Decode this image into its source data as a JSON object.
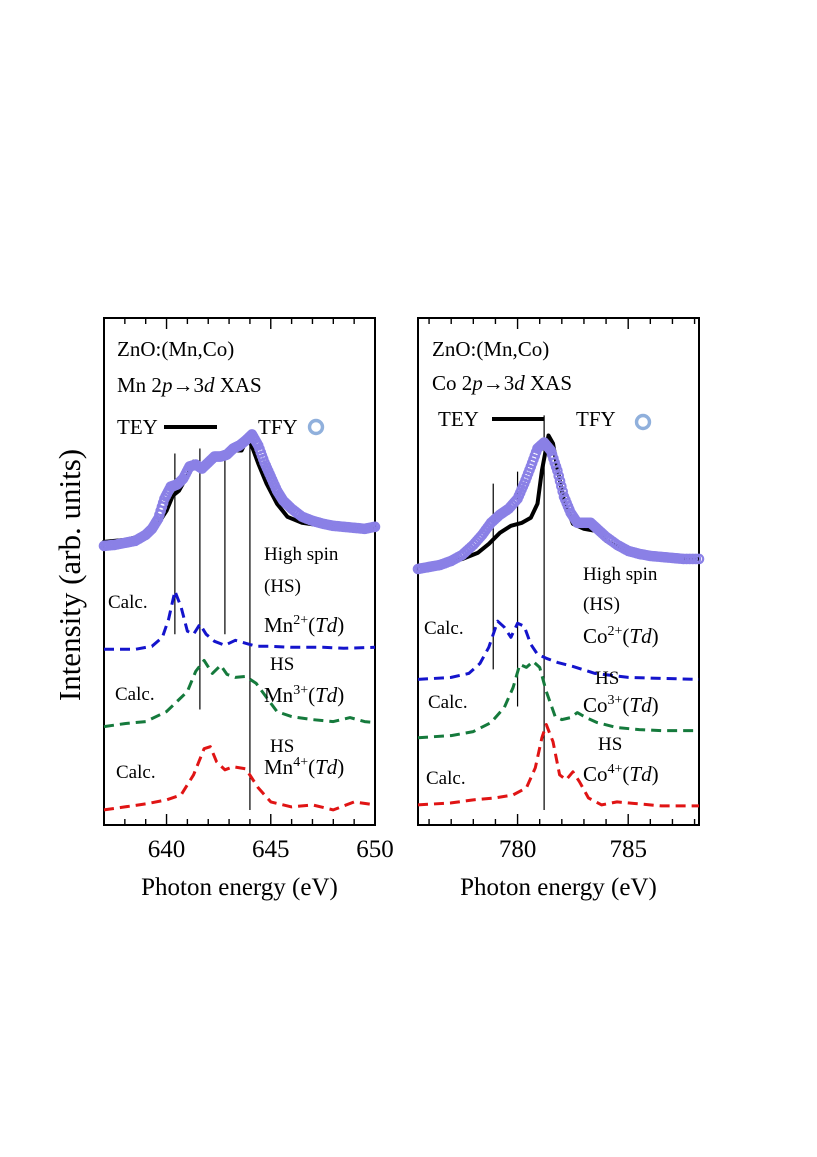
{
  "figure": {
    "ylabel": "Intensity (arb. units)"
  },
  "colors": {
    "tey": "#000000",
    "tfy": "#8a80e6",
    "tfy_legend": "#90b0dc",
    "mn2_co2": "#1414cc",
    "mn3_co3": "#157a3c",
    "mn4_co4": "#e01414"
  },
  "chart_data": [
    {
      "type": "line",
      "panel": "Mn",
      "title_line1": "ZnO:(Mn,Co)",
      "title_line2_html": "Mn 2<i>p</i>→3<i>d</i> XAS",
      "xlabel": "Photon energy (eV)",
      "ylabel": "Intensity (arb. units)",
      "xlim": [
        637,
        650
      ],
      "ylim": [
        -0.15,
        4.9
      ],
      "xticks": [
        "640",
        "645",
        "650"
      ],
      "xtick_values": [
        640,
        645,
        650
      ],
      "legend": {
        "tey": "TEY",
        "tfy": "TFY"
      },
      "vlines": [
        {
          "x": 640.4,
          "y0": 1.75,
          "y1": 3.55
        },
        {
          "x": 641.6,
          "y0": 1.0,
          "y1": 3.6
        },
        {
          "x": 642.8,
          "y0": 1.75,
          "y1": 3.55
        },
        {
          "x": 644.0,
          "y0": 0.0,
          "y1": 3.7
        }
      ],
      "series": [
        {
          "name": "TEY",
          "style": "solid",
          "x": [
            637.0,
            638.0,
            639.0,
            639.5,
            640.0,
            640.3,
            640.6,
            641.0,
            641.3,
            641.6,
            642.0,
            642.4,
            642.8,
            643.2,
            643.6,
            643.9,
            644.1,
            644.4,
            644.8,
            645.3,
            645.8,
            646.5,
            647.5,
            648.5,
            650.0
          ],
          "y": [
            2.67,
            2.69,
            2.74,
            2.82,
            2.98,
            3.13,
            3.18,
            3.33,
            3.47,
            3.4,
            3.45,
            3.53,
            3.51,
            3.58,
            3.58,
            3.71,
            3.62,
            3.45,
            3.25,
            3.05,
            2.92,
            2.86,
            2.83,
            2.81,
            2.8
          ]
        },
        {
          "name": "TFY",
          "style": "markers",
          "x": [
            637.0,
            637.5,
            638.0,
            638.5,
            639.0,
            639.3,
            639.6,
            639.9,
            640.2,
            640.5,
            640.8,
            641.1,
            641.4,
            641.7,
            642.0,
            642.3,
            642.6,
            642.9,
            643.2,
            643.5,
            643.8,
            644.1,
            644.4,
            644.7,
            645.0,
            645.3,
            645.6,
            646.0,
            646.5,
            647.0,
            647.5,
            648.0,
            648.5,
            649.0,
            649.5,
            650.0
          ],
          "y": [
            2.63,
            2.64,
            2.66,
            2.68,
            2.74,
            2.8,
            2.9,
            3.1,
            3.22,
            3.24,
            3.3,
            3.42,
            3.44,
            3.4,
            3.46,
            3.52,
            3.52,
            3.54,
            3.6,
            3.63,
            3.68,
            3.74,
            3.63,
            3.46,
            3.32,
            3.18,
            3.08,
            3.0,
            2.92,
            2.88,
            2.85,
            2.83,
            2.82,
            2.81,
            2.8,
            2.82
          ]
        },
        {
          "name": "Calc. HS Mn2+(Td)",
          "style": "dashed",
          "color_key": "mn2_co2",
          "x": [
            637.0,
            638.5,
            639.3,
            639.8,
            640.1,
            640.4,
            640.7,
            641.0,
            641.3,
            641.6,
            641.9,
            642.3,
            642.8,
            643.3,
            643.8,
            644.3,
            645.0,
            646.0,
            647.5,
            648.5,
            650.0
          ],
          "y": [
            1.6,
            1.6,
            1.63,
            1.72,
            1.9,
            2.18,
            2.02,
            1.78,
            1.75,
            1.85,
            1.75,
            1.68,
            1.64,
            1.69,
            1.66,
            1.63,
            1.63,
            1.62,
            1.62,
            1.61,
            1.62
          ]
        },
        {
          "name": "Calc. HS Mn3+(Td)",
          "style": "dashed",
          "color_key": "mn3_co3",
          "x": [
            637.0,
            638.0,
            639.0,
            640.0,
            640.5,
            641.0,
            641.4,
            641.8,
            642.2,
            642.6,
            642.9,
            643.3,
            643.8,
            644.3,
            644.8,
            645.3,
            646.0,
            647.0,
            648.0,
            648.8,
            649.5,
            650.0
          ],
          "y": [
            0.83,
            0.86,
            0.88,
            0.98,
            1.08,
            1.18,
            1.38,
            1.49,
            1.36,
            1.44,
            1.35,
            1.32,
            1.33,
            1.26,
            1.12,
            0.98,
            0.93,
            0.9,
            0.88,
            0.92,
            0.88,
            0.87
          ]
        },
        {
          "name": "Calc. HS Mn4+(Td)",
          "style": "dashed",
          "color_key": "mn4_co4",
          "x": [
            637.0,
            638.0,
            639.0,
            640.0,
            640.7,
            641.3,
            641.8,
            642.1,
            642.4,
            642.8,
            643.2,
            643.8,
            644.4,
            645.0,
            646.0,
            647.0,
            648.0,
            649.0,
            650.0
          ],
          "y": [
            0.0,
            0.03,
            0.06,
            0.1,
            0.15,
            0.35,
            0.61,
            0.63,
            0.48,
            0.4,
            0.43,
            0.41,
            0.22,
            0.08,
            0.03,
            0.05,
            0.0,
            0.08,
            0.05
          ]
        }
      ],
      "labels": {
        "calc": "Calc.",
        "high_spin": "High spin",
        "hs_paren": "(HS)",
        "hs": "HS",
        "ion2_html": "Mn<tspan dy='-8' font-size='14'>2+</tspan><tspan dy='8'>(</tspan><tspan font-style='italic'>Td</tspan>)",
        "ion3_html": "Mn<tspan dy='-8' font-size='14'>3+</tspan><tspan dy='8'>(</tspan><tspan font-style='italic'>Td</tspan>)",
        "ion4_html": "Mn<tspan dy='-8' font-size='14'>4+</tspan><tspan dy='8'>(</tspan><tspan font-style='italic'>Td</tspan>)"
      }
    },
    {
      "type": "line",
      "panel": "Co",
      "title_line1": "ZnO:(Mn,Co)",
      "title_line2_html": "Co 2<i>p</i>→3<i>d</i> XAS",
      "xlabel": "Photon energy (eV)",
      "ylabel": "",
      "xlim": [
        775.5,
        788.2
      ],
      "ylim": [
        -0.15,
        4.9
      ],
      "xticks": [
        "780",
        "785"
      ],
      "xtick_values": [
        780,
        785
      ],
      "legend": {
        "tey": "TEY",
        "tfy": "TFY"
      },
      "vlines": [
        {
          "x": 778.9,
          "y0": 1.4,
          "y1": 3.25
        },
        {
          "x": 780.0,
          "y0": 1.03,
          "y1": 3.37
        },
        {
          "x": 781.2,
          "y0": 0.0,
          "y1": 3.93
        }
      ],
      "series": [
        {
          "name": "TEY",
          "style": "solid",
          "x": [
            775.5,
            776.5,
            777.5,
            778.2,
            778.7,
            779.2,
            779.7,
            780.2,
            780.6,
            780.9,
            781.1,
            781.4,
            781.6,
            781.8,
            782.1,
            782.5,
            783.0,
            783.5,
            784.0,
            785.0,
            786.0,
            787.0,
            788.2
          ],
          "y": [
            2.43,
            2.46,
            2.5,
            2.56,
            2.65,
            2.76,
            2.83,
            2.86,
            2.91,
            3.05,
            3.38,
            3.73,
            3.65,
            3.4,
            3.08,
            2.85,
            2.8,
            2.78,
            2.68,
            2.58,
            2.54,
            2.51,
            2.5
          ]
        },
        {
          "name": "TFY",
          "style": "markers",
          "x": [
            775.5,
            776.0,
            776.5,
            777.0,
            777.5,
            778.0,
            778.4,
            778.8,
            779.2,
            779.6,
            780.0,
            780.3,
            780.6,
            780.9,
            781.2,
            781.5,
            781.8,
            782.1,
            782.4,
            782.7,
            783.0,
            783.3,
            783.6,
            784.0,
            784.5,
            785.0,
            785.5,
            786.0,
            786.5,
            787.0,
            787.5,
            788.2
          ],
          "y": [
            2.4,
            2.42,
            2.44,
            2.48,
            2.54,
            2.64,
            2.74,
            2.86,
            2.94,
            3.0,
            3.1,
            3.25,
            3.42,
            3.6,
            3.66,
            3.58,
            3.38,
            3.12,
            2.96,
            2.86,
            2.86,
            2.86,
            2.8,
            2.72,
            2.64,
            2.58,
            2.55,
            2.53,
            2.52,
            2.51,
            2.5,
            2.5
          ]
        },
        {
          "name": "Calc. HS Co2+(Td)",
          "style": "dashed",
          "color_key": "mn2_co2",
          "x": [
            775.5,
            777.0,
            777.8,
            778.3,
            778.7,
            779.1,
            779.4,
            779.7,
            780.0,
            780.3,
            780.6,
            780.9,
            781.3,
            781.8,
            782.5,
            783.5,
            785.0,
            786.5,
            788.2
          ],
          "y": [
            1.3,
            1.32,
            1.36,
            1.46,
            1.62,
            1.88,
            1.82,
            1.72,
            1.86,
            1.83,
            1.65,
            1.55,
            1.51,
            1.47,
            1.43,
            1.36,
            1.32,
            1.31,
            1.3
          ]
        },
        {
          "name": "Calc. HS Co3+(Td)",
          "style": "dashed",
          "color_key": "mn3_co3",
          "x": [
            775.5,
            777.0,
            778.0,
            778.8,
            779.4,
            779.8,
            780.1,
            780.4,
            780.7,
            781.0,
            781.3,
            781.7,
            782.0,
            782.4,
            782.7,
            783.1,
            783.6,
            784.5,
            785.5,
            786.5,
            788.2
          ],
          "y": [
            0.72,
            0.74,
            0.78,
            0.87,
            1.02,
            1.22,
            1.45,
            1.42,
            1.48,
            1.42,
            1.18,
            0.93,
            0.9,
            0.92,
            0.97,
            0.92,
            0.87,
            0.82,
            0.8,
            0.79,
            0.79
          ]
        },
        {
          "name": "Calc. HS Co4+(Td)",
          "style": "dashed",
          "color_key": "mn4_co4",
          "x": [
            775.5,
            777.0,
            778.0,
            779.0,
            779.8,
            780.4,
            780.8,
            781.1,
            781.3,
            781.6,
            781.9,
            782.2,
            782.5,
            782.8,
            783.2,
            783.8,
            784.5,
            785.5,
            786.5,
            787.5,
            788.2
          ],
          "y": [
            0.05,
            0.07,
            0.1,
            0.12,
            0.15,
            0.22,
            0.42,
            0.72,
            0.85,
            0.68,
            0.35,
            0.3,
            0.38,
            0.28,
            0.12,
            0.05,
            0.08,
            0.06,
            0.04,
            0.04,
            0.04
          ]
        }
      ],
      "labels": {
        "calc": "Calc.",
        "high_spin": "High spin",
        "hs_paren": "(HS)",
        "hs": "HS",
        "ion2_html": "Co<tspan dy='-8' font-size='14'>2+</tspan><tspan dy='8'>(</tspan><tspan font-style='italic'>Td</tspan>)",
        "ion3_html": "Co<tspan dy='-8' font-size='14'>3+</tspan><tspan dy='8'>(</tspan><tspan font-style='italic'>Td</tspan>)",
        "ion4_html": "Co<tspan dy='-8' font-size='14'>4+</tspan><tspan dy='8'>(</tspan><tspan font-style='italic'>Td</tspan>)"
      }
    }
  ]
}
